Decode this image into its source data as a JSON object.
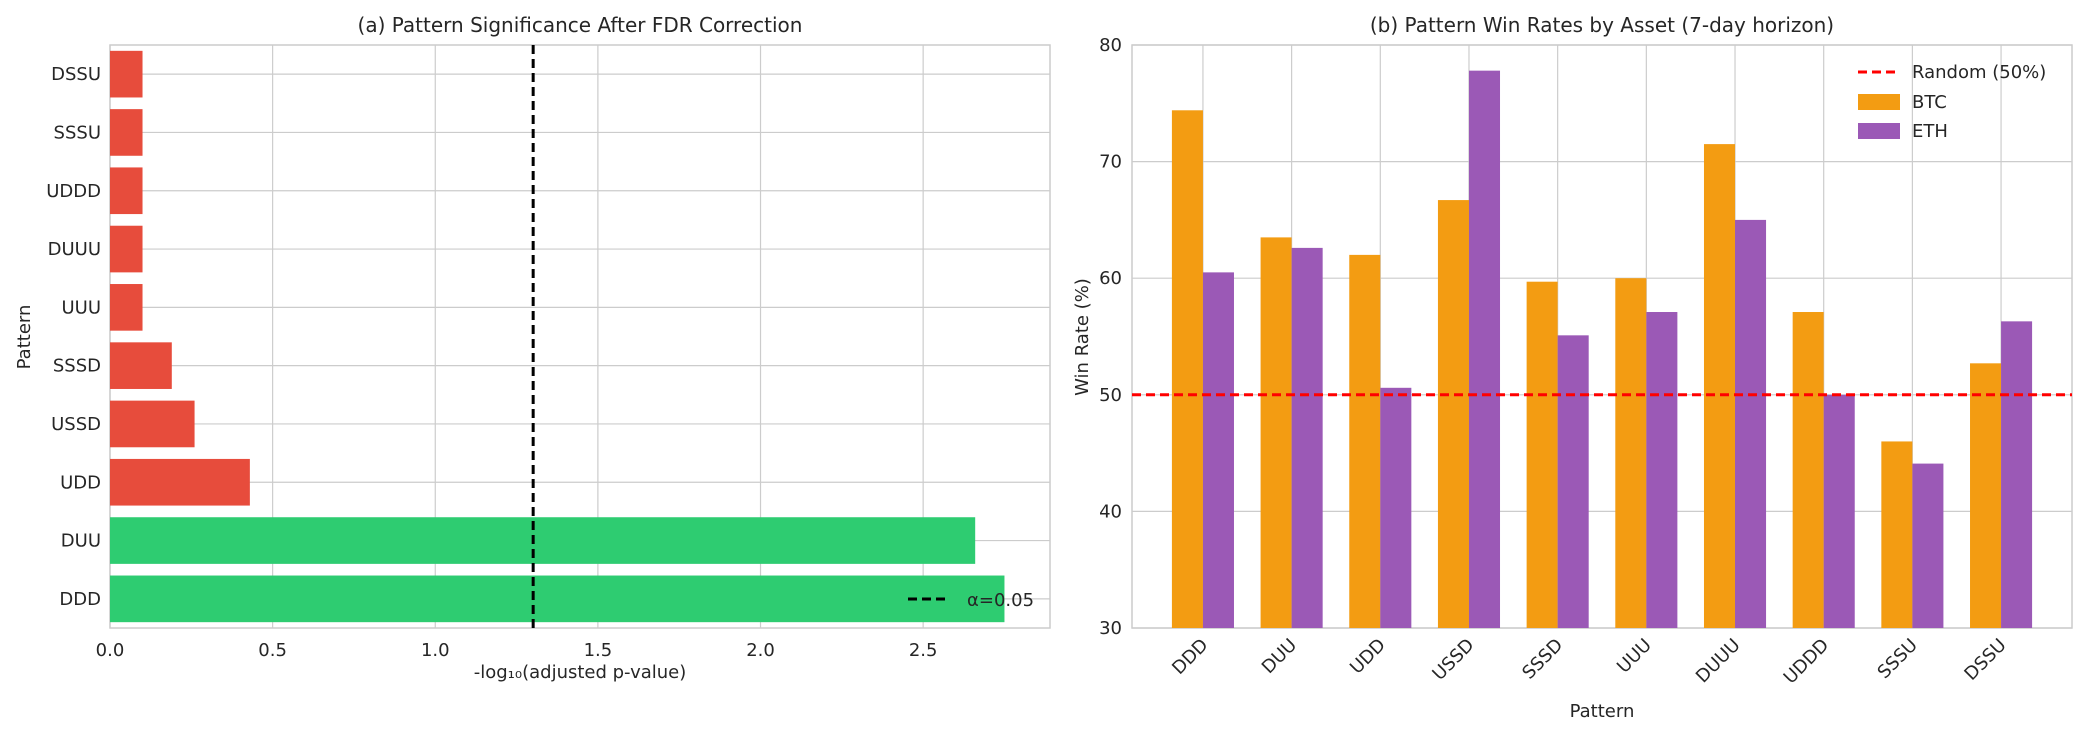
{
  "colors": {
    "significant": "#2ecc71",
    "not_significant": "#e74c3c",
    "btc": "#f39c12",
    "eth": "#9b59b6",
    "random_line": "#ff0000",
    "alpha_line": "#000000",
    "grid": "#cccccc",
    "axes_edge": "#cccccc"
  },
  "chart_data": [
    {
      "type": "bar",
      "orientation": "horizontal",
      "title": "(a) Pattern Significance After FDR Correction",
      "xlabel": "-log₁₀(adjusted p-value)",
      "ylabel": "Pattern",
      "xlim": [
        0,
        2.89
      ],
      "xticks": [
        0.0,
        0.5,
        1.0,
        1.5,
        2.0,
        2.5
      ],
      "xtick_labels": [
        "0.0",
        "0.5",
        "1.0",
        "1.5",
        "2.0",
        "2.5"
      ],
      "grid": true,
      "categories": [
        "DDD",
        "DUU",
        "UDD",
        "USSD",
        "SSSD",
        "UUU",
        "DUUU",
        "UDDD",
        "SSSU",
        "DSSU"
      ],
      "values": [
        2.75,
        2.66,
        0.43,
        0.26,
        0.19,
        0.1,
        0.1,
        0.1,
        0.1,
        0.1
      ],
      "significant": [
        true,
        true,
        false,
        false,
        false,
        false,
        false,
        false,
        false,
        false
      ],
      "threshold": {
        "value": 1.301,
        "label": "α=0.05",
        "style": "dashed"
      },
      "legend": {
        "position": "lower-right",
        "entries": [
          "α=0.05"
        ]
      }
    },
    {
      "type": "bar",
      "orientation": "vertical",
      "title": "(b) Pattern Win Rates by Asset (7-day horizon)",
      "xlabel": "Pattern",
      "ylabel": "Win Rate (%)",
      "ylim": [
        30,
        80
      ],
      "yticks": [
        30,
        40,
        50,
        60,
        70,
        80
      ],
      "grid": true,
      "categories": [
        "DDD",
        "DUU",
        "UDD",
        "USSD",
        "SSSD",
        "UUU",
        "DUUU",
        "UDDD",
        "SSSU",
        "DSSU"
      ],
      "series": [
        {
          "name": "BTC",
          "values": [
            74.4,
            63.5,
            62.0,
            66.7,
            59.7,
            60.0,
            71.5,
            57.1,
            46.0,
            52.7
          ]
        },
        {
          "name": "ETH",
          "values": [
            60.5,
            62.6,
            50.6,
            77.8,
            55.1,
            57.1,
            65.0,
            50.0,
            44.1,
            56.3
          ]
        }
      ],
      "reference_line": {
        "value": 50,
        "label": "Random (50%)",
        "style": "dashed"
      },
      "legend": {
        "position": "upper-right",
        "entries": [
          "Random (50%)",
          "BTC",
          "ETH"
        ]
      }
    }
  ]
}
